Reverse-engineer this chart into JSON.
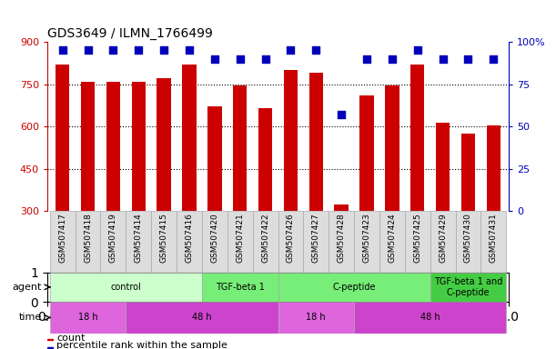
{
  "title": "GDS3649 / ILMN_1766499",
  "samples": [
    "GSM507417",
    "GSM507418",
    "GSM507419",
    "GSM507414",
    "GSM507415",
    "GSM507416",
    "GSM507420",
    "GSM507421",
    "GSM507422",
    "GSM507426",
    "GSM507427",
    "GSM507428",
    "GSM507423",
    "GSM507424",
    "GSM507425",
    "GSM507429",
    "GSM507430",
    "GSM507431"
  ],
  "counts": [
    820,
    760,
    760,
    760,
    770,
    820,
    670,
    747,
    665,
    800,
    790,
    325,
    710,
    747,
    820,
    615,
    575,
    605
  ],
  "percentile_ranks": [
    95,
    95,
    95,
    95,
    95,
    95,
    90,
    90,
    90,
    95,
    95,
    57,
    90,
    90,
    95,
    90,
    90,
    90
  ],
  "ylim_left": [
    300,
    900
  ],
  "ylim_right": [
    0,
    100
  ],
  "yticks_left": [
    300,
    450,
    600,
    750,
    900
  ],
  "yticks_right": [
    0,
    25,
    50,
    75,
    100
  ],
  "bar_color": "#cc0000",
  "dot_color": "#0000bb",
  "grid_color": "#555555",
  "agent_groups": [
    {
      "label": "control",
      "start": 0,
      "end": 6,
      "color": "#ccffcc"
    },
    {
      "label": "TGF-beta 1",
      "start": 6,
      "end": 9,
      "color": "#77ee77"
    },
    {
      "label": "C-peptide",
      "start": 9,
      "end": 15,
      "color": "#77ee77"
    },
    {
      "label": "TGF-beta 1 and\nC-peptide",
      "start": 15,
      "end": 18,
      "color": "#44cc44"
    }
  ],
  "time_groups": [
    {
      "label": "18 h",
      "start": 0,
      "end": 3,
      "color": "#dd66dd"
    },
    {
      "label": "48 h",
      "start": 3,
      "end": 9,
      "color": "#cc44cc"
    },
    {
      "label": "18 h",
      "start": 9,
      "end": 12,
      "color": "#dd66dd"
    },
    {
      "label": "48 h",
      "start": 12,
      "end": 18,
      "color": "#cc44cc"
    }
  ],
  "bar_width": 0.55,
  "dot_size": 40,
  "background_color": "#ffffff",
  "tick_color_left": "#cc0000",
  "tick_color_right": "#0000bb",
  "sample_bg_color": "#dddddd",
  "sample_border_color": "#aaaaaa"
}
